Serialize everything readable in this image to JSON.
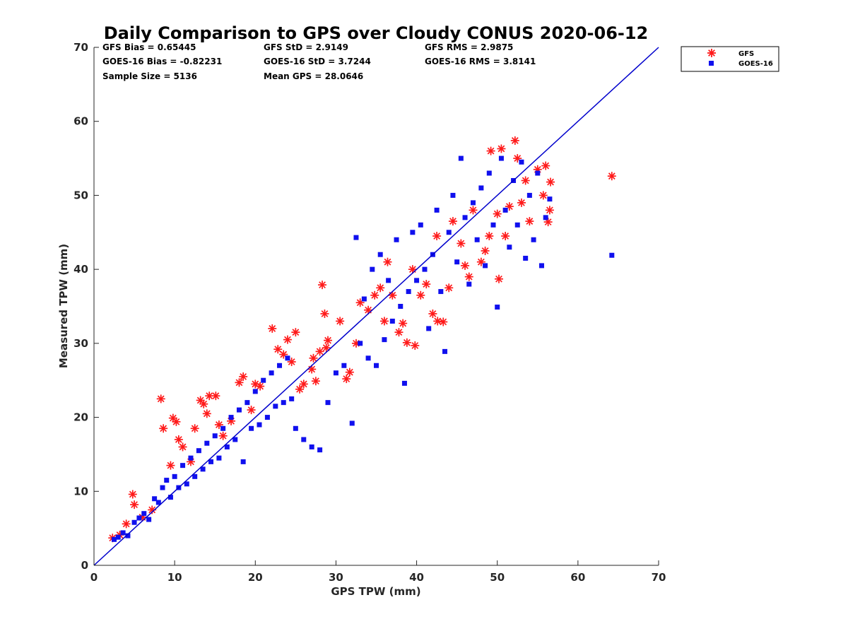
{
  "chart_data": {
    "type": "scatter",
    "title": "Daily Comparison to GPS over Cloudy CONUS 2020-06-12",
    "xlabel": "GPS TPW (mm)",
    "ylabel": "Measured TPW (mm)",
    "xlim": [
      0,
      70
    ],
    "ylim": [
      0,
      70
    ],
    "xticks": [
      "0",
      "10",
      "20",
      "30",
      "40",
      "50",
      "60",
      "70"
    ],
    "yticks": [
      "0",
      "10",
      "20",
      "30",
      "40",
      "50",
      "60",
      "70"
    ],
    "grid": false,
    "legend_position": "outside-top-right",
    "stats": [
      [
        "GFS Bias = 0.65445",
        "GFS StD = 2.9149",
        "GFS RMS = 2.9875"
      ],
      [
        "GOES-16 Bias = -0.82231",
        "GOES-16 StD = 3.7244",
        "GOES-16 RMS = 3.8141"
      ],
      [
        "Sample Size = 5136",
        "Mean GPS = 28.0646",
        ""
      ]
    ],
    "reference_line": {
      "x": [
        0,
        70
      ],
      "y": [
        0,
        70
      ],
      "color": "#0000cc"
    },
    "series": [
      {
        "name": "GFS",
        "marker": "asterisk",
        "color": "#ff1a1a",
        "points": [
          [
            2.3,
            3.7
          ],
          [
            3.2,
            4.1
          ],
          [
            4.0,
            5.6
          ],
          [
            4.8,
            9.6
          ],
          [
            5.0,
            8.2
          ],
          [
            6.0,
            6.5
          ],
          [
            7.2,
            7.5
          ],
          [
            8.3,
            22.5
          ],
          [
            8.6,
            18.5
          ],
          [
            9.5,
            13.5
          ],
          [
            9.8,
            19.9
          ],
          [
            10.2,
            19.4
          ],
          [
            10.5,
            17.0
          ],
          [
            11.0,
            16.0
          ],
          [
            12.0,
            14.0
          ],
          [
            12.5,
            18.5
          ],
          [
            13.2,
            22.3
          ],
          [
            13.6,
            21.8
          ],
          [
            14.0,
            20.5
          ],
          [
            14.3,
            22.9
          ],
          [
            15.1,
            22.9
          ],
          [
            15.5,
            19.0
          ],
          [
            16.0,
            17.5
          ],
          [
            17.0,
            19.5
          ],
          [
            18.0,
            24.7
          ],
          [
            18.5,
            25.5
          ],
          [
            19.5,
            21.0
          ],
          [
            20.0,
            24.5
          ],
          [
            20.6,
            24.2
          ],
          [
            22.1,
            32.0
          ],
          [
            22.8,
            29.2
          ],
          [
            23.5,
            28.5
          ],
          [
            24.0,
            30.5
          ],
          [
            24.5,
            27.5
          ],
          [
            25.0,
            31.5
          ],
          [
            25.5,
            23.8
          ],
          [
            26.0,
            24.5
          ],
          [
            27.0,
            26.5
          ],
          [
            27.2,
            28.0
          ],
          [
            27.5,
            24.9
          ],
          [
            28.0,
            28.9
          ],
          [
            28.3,
            37.9
          ],
          [
            28.6,
            34.0
          ],
          [
            28.8,
            29.4
          ],
          [
            29.0,
            30.4
          ],
          [
            30.5,
            33.0
          ],
          [
            31.3,
            25.2
          ],
          [
            31.7,
            26.1
          ],
          [
            32.5,
            30.0
          ],
          [
            33.0,
            35.5
          ],
          [
            34.0,
            34.5
          ],
          [
            34.8,
            36.5
          ],
          [
            35.5,
            37.5
          ],
          [
            36.0,
            33.0
          ],
          [
            36.4,
            41.0
          ],
          [
            37.0,
            36.5
          ],
          [
            37.8,
            31.5
          ],
          [
            38.3,
            32.7
          ],
          [
            38.8,
            30.1
          ],
          [
            39.5,
            40.0
          ],
          [
            39.8,
            29.7
          ],
          [
            40.5,
            36.5
          ],
          [
            41.2,
            38.0
          ],
          [
            42.0,
            34.0
          ],
          [
            42.5,
            44.5
          ],
          [
            42.6,
            33.0
          ],
          [
            43.3,
            32.9
          ],
          [
            44.0,
            37.5
          ],
          [
            44.5,
            46.5
          ],
          [
            45.5,
            43.5
          ],
          [
            46.0,
            40.5
          ],
          [
            46.5,
            39.0
          ],
          [
            47.0,
            48.0
          ],
          [
            48.0,
            41.0
          ],
          [
            48.5,
            42.5
          ],
          [
            49.0,
            44.5
          ],
          [
            49.2,
            56.0
          ],
          [
            50.0,
            47.5
          ],
          [
            50.2,
            38.7
          ],
          [
            50.5,
            56.3
          ],
          [
            51.0,
            44.5
          ],
          [
            51.5,
            48.5
          ],
          [
            52.2,
            57.4
          ],
          [
            52.5,
            55.0
          ],
          [
            53.0,
            49.0
          ],
          [
            53.5,
            52.0
          ],
          [
            54.0,
            46.5
          ],
          [
            55.0,
            53.5
          ],
          [
            55.7,
            50.0
          ],
          [
            56.0,
            54.0
          ],
          [
            56.3,
            46.4
          ],
          [
            56.5,
            48.0
          ],
          [
            56.6,
            51.8
          ],
          [
            64.2,
            52.6
          ]
        ]
      },
      {
        "name": "GOES-16",
        "marker": "square",
        "color": "#1010ee",
        "points": [
          [
            2.5,
            3.5
          ],
          [
            3.0,
            3.8
          ],
          [
            3.6,
            4.4
          ],
          [
            4.2,
            4.0
          ],
          [
            5.0,
            5.8
          ],
          [
            5.6,
            6.4
          ],
          [
            6.2,
            7.0
          ],
          [
            6.8,
            6.2
          ],
          [
            7.5,
            9.0
          ],
          [
            8.0,
            8.5
          ],
          [
            8.5,
            10.5
          ],
          [
            9.0,
            11.5
          ],
          [
            9.5,
            9.2
          ],
          [
            10.0,
            12.0
          ],
          [
            10.5,
            10.5
          ],
          [
            11.0,
            13.5
          ],
          [
            11.5,
            11.0
          ],
          [
            12.0,
            14.5
          ],
          [
            12.5,
            12.0
          ],
          [
            13.0,
            15.5
          ],
          [
            13.5,
            13.0
          ],
          [
            14.0,
            16.5
          ],
          [
            14.5,
            14.0
          ],
          [
            15.0,
            17.5
          ],
          [
            15.5,
            14.5
          ],
          [
            16.0,
            18.5
          ],
          [
            16.5,
            16.0
          ],
          [
            17.0,
            20.0
          ],
          [
            17.5,
            17.0
          ],
          [
            18.0,
            21.0
          ],
          [
            18.5,
            14.0
          ],
          [
            19.0,
            22.0
          ],
          [
            19.5,
            18.5
          ],
          [
            20.0,
            23.5
          ],
          [
            20.5,
            19.0
          ],
          [
            21.0,
            25.0
          ],
          [
            21.5,
            20.0
          ],
          [
            22.0,
            26.0
          ],
          [
            22.5,
            21.5
          ],
          [
            23.0,
            27.0
          ],
          [
            23.5,
            22.0
          ],
          [
            24.0,
            28.0
          ],
          [
            24.5,
            22.5
          ],
          [
            25.0,
            18.5
          ],
          [
            26.0,
            17.0
          ],
          [
            27.0,
            16.0
          ],
          [
            28.0,
            15.6
          ],
          [
            29.0,
            22.0
          ],
          [
            30.0,
            26.0
          ],
          [
            31.0,
            27.0
          ],
          [
            32.0,
            19.2
          ],
          [
            32.5,
            44.3
          ],
          [
            33.0,
            30.0
          ],
          [
            33.5,
            36.0
          ],
          [
            34.0,
            28.0
          ],
          [
            34.5,
            40.0
          ],
          [
            35.0,
            27.0
          ],
          [
            35.5,
            42.0
          ],
          [
            36.0,
            30.5
          ],
          [
            36.5,
            38.5
          ],
          [
            37.0,
            33.0
          ],
          [
            37.5,
            44.0
          ],
          [
            38.0,
            35.0
          ],
          [
            38.5,
            24.6
          ],
          [
            39.0,
            37.0
          ],
          [
            39.5,
            45.0
          ],
          [
            40.0,
            38.5
          ],
          [
            40.5,
            46.0
          ],
          [
            41.0,
            40.0
          ],
          [
            41.5,
            32.0
          ],
          [
            42.0,
            42.0
          ],
          [
            42.5,
            48.0
          ],
          [
            43.0,
            37.0
          ],
          [
            43.5,
            28.9
          ],
          [
            44.0,
            45.0
          ],
          [
            44.5,
            50.0
          ],
          [
            45.0,
            41.0
          ],
          [
            45.5,
            55.0
          ],
          [
            46.0,
            47.0
          ],
          [
            46.5,
            38.0
          ],
          [
            47.0,
            49.0
          ],
          [
            47.5,
            44.0
          ],
          [
            48.0,
            51.0
          ],
          [
            48.5,
            40.5
          ],
          [
            49.0,
            53.0
          ],
          [
            49.5,
            46.0
          ],
          [
            50.0,
            34.9
          ],
          [
            50.5,
            55.0
          ],
          [
            51.0,
            48.0
          ],
          [
            51.5,
            43.0
          ],
          [
            52.0,
            52.0
          ],
          [
            52.5,
            46.0
          ],
          [
            53.0,
            54.5
          ],
          [
            53.5,
            41.5
          ],
          [
            54.0,
            50.0
          ],
          [
            54.5,
            44.0
          ],
          [
            55.0,
            53.0
          ],
          [
            55.5,
            40.5
          ],
          [
            56.0,
            47.0
          ],
          [
            56.5,
            49.5
          ],
          [
            64.2,
            41.9
          ]
        ]
      }
    ]
  }
}
